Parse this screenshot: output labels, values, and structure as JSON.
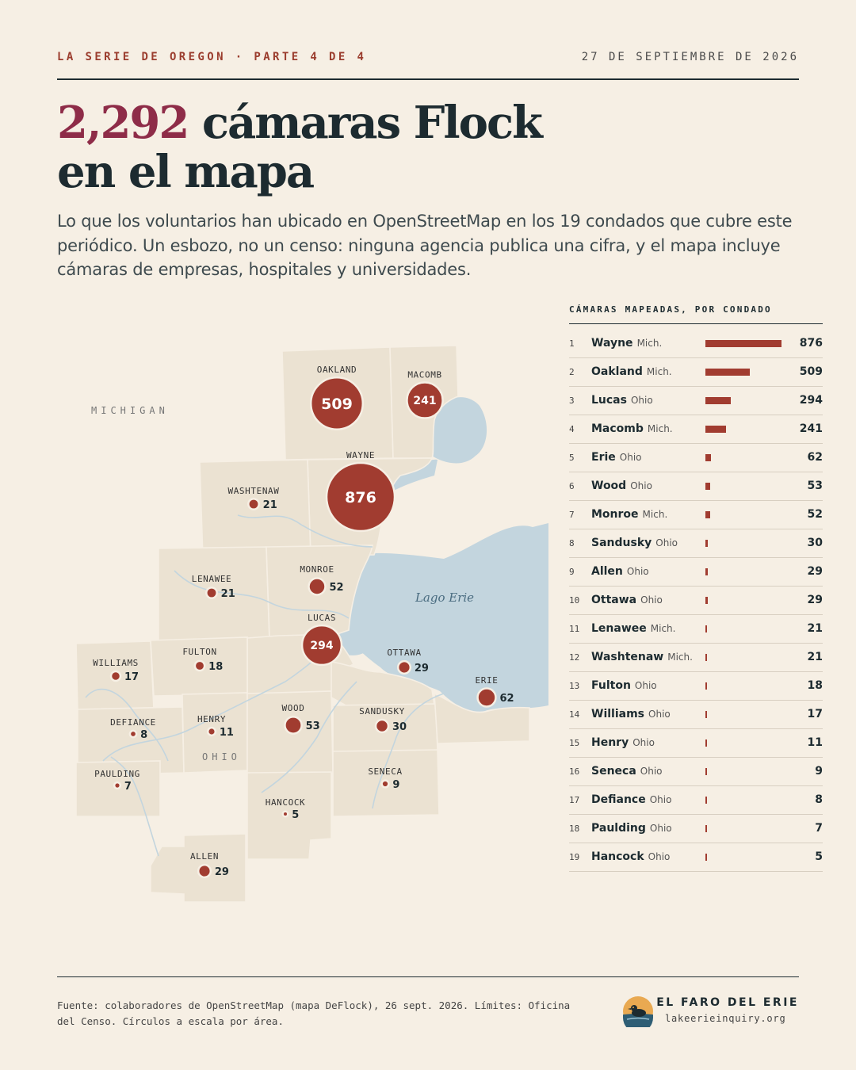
{
  "header": {
    "kicker": "LA SERIE DE OREGON · PARTE 4 DE 4",
    "date": "27 DE SEPTIEMBRE DE 2026"
  },
  "headline": {
    "number": "2,292",
    "rest_line1": " cámaras Flock",
    "line2": "en el mapa"
  },
  "dek": "Lo que los voluntarios han ubicado en OpenStreetMap en los 19 condados que cubre este periódico. Un esbozo, no un censo: ninguna agencia publica una cifra, y el mapa incluye cámaras de empresas, hospitales y universidades.",
  "map": {
    "state_labels": {
      "michigan": "MICHIGAN",
      "ohio": "OHIO"
    },
    "lake_label": "Lago Erie",
    "counties": [
      {
        "name": "OAKLAND",
        "count": "509",
        "value": 509
      },
      {
        "name": "MACOMB",
        "count": "241",
        "value": 241
      },
      {
        "name": "WAYNE",
        "count": "876",
        "value": 876
      },
      {
        "name": "WASHTENAW",
        "count": "21",
        "value": 21
      },
      {
        "name": "LENAWEE",
        "count": "21",
        "value": 21
      },
      {
        "name": "MONROE",
        "count": "52",
        "value": 52
      },
      {
        "name": "LUCAS",
        "count": "294",
        "value": 294
      },
      {
        "name": "WILLIAMS",
        "count": "17",
        "value": 17
      },
      {
        "name": "FULTON",
        "count": "18",
        "value": 18
      },
      {
        "name": "OTTAWA",
        "count": "29",
        "value": 29
      },
      {
        "name": "ERIE",
        "count": "62",
        "value": 62
      },
      {
        "name": "DEFIANCE",
        "count": "8",
        "value": 8
      },
      {
        "name": "HENRY",
        "count": "11",
        "value": 11
      },
      {
        "name": "WOOD",
        "count": "53",
        "value": 53
      },
      {
        "name": "SANDUSKY",
        "count": "30",
        "value": 30
      },
      {
        "name": "PAULDING",
        "count": "7",
        "value": 7
      },
      {
        "name": "SENECA",
        "count": "9",
        "value": 9
      },
      {
        "name": "HANCOCK",
        "count": "5",
        "value": 5
      },
      {
        "name": "ALLEN",
        "count": "29",
        "value": 29
      }
    ]
  },
  "ranking": {
    "title": "CÁMARAS MAPEADAS, POR CONDADO",
    "rows": [
      {
        "rank": "1",
        "county": "Wayne",
        "state": "Mich.",
        "value": "876"
      },
      {
        "rank": "2",
        "county": "Oakland",
        "state": "Mich.",
        "value": "509"
      },
      {
        "rank": "3",
        "county": "Lucas",
        "state": "Ohio",
        "value": "294"
      },
      {
        "rank": "4",
        "county": "Macomb",
        "state": "Mich.",
        "value": "241"
      },
      {
        "rank": "5",
        "county": "Erie",
        "state": "Ohio",
        "value": "62"
      },
      {
        "rank": "6",
        "county": "Wood",
        "state": "Ohio",
        "value": "53"
      },
      {
        "rank": "7",
        "county": "Monroe",
        "state": "Mich.",
        "value": "52"
      },
      {
        "rank": "8",
        "county": "Sandusky",
        "state": "Ohio",
        "value": "30"
      },
      {
        "rank": "9",
        "county": "Allen",
        "state": "Ohio",
        "value": "29"
      },
      {
        "rank": "10",
        "county": "Ottawa",
        "state": "Ohio",
        "value": "29"
      },
      {
        "rank": "11",
        "county": "Lenawee",
        "state": "Mich.",
        "value": "21"
      },
      {
        "rank": "12",
        "county": "Washtenaw",
        "state": "Mich.",
        "value": "21"
      },
      {
        "rank": "13",
        "county": "Fulton",
        "state": "Ohio",
        "value": "18"
      },
      {
        "rank": "14",
        "county": "Williams",
        "state": "Ohio",
        "value": "17"
      },
      {
        "rank": "15",
        "county": "Henry",
        "state": "Ohio",
        "value": "11"
      },
      {
        "rank": "16",
        "county": "Seneca",
        "state": "Ohio",
        "value": "9"
      },
      {
        "rank": "17",
        "county": "Defiance",
        "state": "Ohio",
        "value": "8"
      },
      {
        "rank": "18",
        "county": "Paulding",
        "state": "Ohio",
        "value": "7"
      },
      {
        "rank": "19",
        "county": "Hancock",
        "state": "Ohio",
        "value": "5"
      }
    ]
  },
  "footer": {
    "source": "Fuente: colaboradores de OpenStreetMap (mapa DeFlock), 26 sept. 2026. Límites: Oficina del Censo. Círculos a escala por área.",
    "brand_name": "EL FARO DEL ERIE",
    "brand_url": "lakeerieinquiry.org"
  },
  "colors": {
    "accent": "#a13c30",
    "headline_number": "#8e2c48",
    "background": "#f6efe4",
    "land": "#ebe2d2",
    "water": "#c3d5de"
  }
}
